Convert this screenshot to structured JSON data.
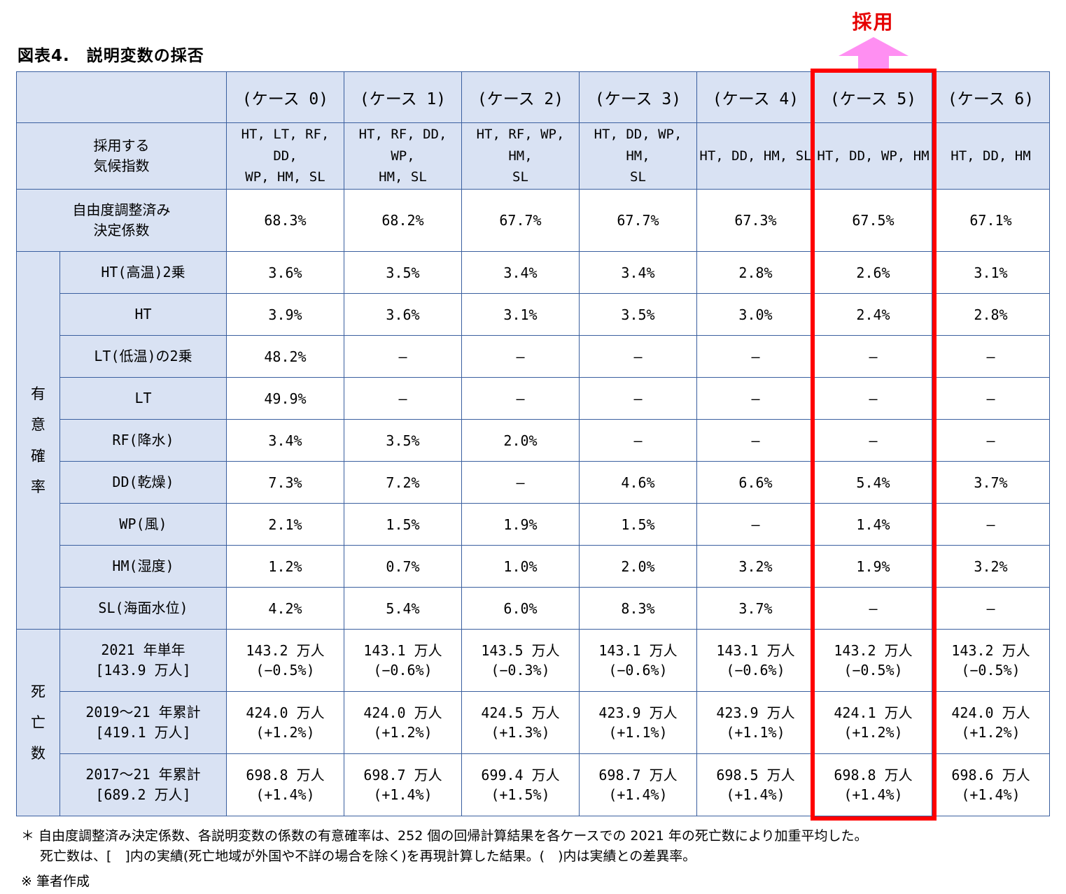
{
  "title": "図表4.　説明変数の採否",
  "adopt_label": "採用",
  "colors": {
    "header_bg": "#d9e2f3",
    "table_border": "#3a5f9f",
    "highlight_box": "#ff0000",
    "adopt_text": "#e60000",
    "arrow_pink": "#ff8ff2"
  },
  "table": {
    "case_headers": [
      "(ケース 0)",
      "(ケース 1)",
      "(ケース 2)",
      "(ケース 3)",
      "(ケース 4)",
      "(ケース 5)",
      "(ケース 6)"
    ],
    "climate_row": {
      "label": "採用する\n気候指数",
      "values": [
        "HT, LT, RF, DD,\nWP, HM, SL",
        "HT, RF, DD, WP,\nHM, SL",
        "HT, RF, WP, HM,\nSL",
        "HT, DD, WP, HM,\nSL",
        "HT, DD, HM, SL",
        "HT, DD, WP, HM",
        "HT, DD, HM"
      ]
    },
    "r2_row": {
      "label": "自由度調整済み\n決定係数",
      "values": [
        "68.3%",
        "68.2%",
        "67.7%",
        "67.7%",
        "67.3%",
        "67.5%",
        "67.1%"
      ]
    },
    "sig_group_label": "有意確率",
    "sig_rows": [
      {
        "label": "HT(高温)2乗",
        "values": [
          "3.6%",
          "3.5%",
          "3.4%",
          "3.4%",
          "2.8%",
          "2.6%",
          "3.1%"
        ]
      },
      {
        "label": "HT",
        "values": [
          "3.9%",
          "3.6%",
          "3.1%",
          "3.5%",
          "3.0%",
          "2.4%",
          "2.8%"
        ]
      },
      {
        "label": "LT(低温)の2乗",
        "values": [
          "48.2%",
          "―",
          "―",
          "―",
          "―",
          "―",
          "―"
        ]
      },
      {
        "label": "LT",
        "values": [
          "49.9%",
          "―",
          "―",
          "―",
          "―",
          "―",
          "―"
        ]
      },
      {
        "label": "RF(降水)",
        "values": [
          "3.4%",
          "3.5%",
          "2.0%",
          "―",
          "―",
          "―",
          "―"
        ]
      },
      {
        "label": "DD(乾燥)",
        "values": [
          "7.3%",
          "7.2%",
          "―",
          "4.6%",
          "6.6%",
          "5.4%",
          "3.7%"
        ]
      },
      {
        "label": "WP(風)",
        "values": [
          "2.1%",
          "1.5%",
          "1.9%",
          "1.5%",
          "―",
          "1.4%",
          "―"
        ]
      },
      {
        "label": "HM(湿度)",
        "values": [
          "1.2%",
          "0.7%",
          "1.0%",
          "2.0%",
          "3.2%",
          "1.9%",
          "3.2%"
        ]
      },
      {
        "label": "SL(海面水位)",
        "values": [
          "4.2%",
          "5.4%",
          "6.0%",
          "8.3%",
          "3.7%",
          "―",
          "―"
        ]
      }
    ],
    "death_group_label": "死亡数",
    "death_rows": [
      {
        "label": "2021 年単年\n[143.9 万人]",
        "values": [
          "143.2 万人\n(−0.5%)",
          "143.1 万人\n(−0.6%)",
          "143.5 万人\n(−0.3%)",
          "143.1 万人\n(−0.6%)",
          "143.1 万人\n(−0.6%)",
          "143.2 万人\n(−0.5%)",
          "143.2 万人\n(−0.5%)"
        ]
      },
      {
        "label": "2019〜21 年累計\n[419.1 万人]",
        "values": [
          "424.0 万人\n(+1.2%)",
          "424.0 万人\n(+1.2%)",
          "424.5 万人\n(+1.3%)",
          "423.9 万人\n(+1.1%)",
          "423.9 万人\n(+1.1%)",
          "424.1 万人\n(+1.2%)",
          "424.0 万人\n(+1.2%)"
        ]
      },
      {
        "label": "2017〜21 年累計\n[689.2 万人]",
        "values": [
          "698.8 万人\n(+1.4%)",
          "698.7 万人\n(+1.4%)",
          "699.4 万人\n(+1.5%)",
          "698.7 万人\n(+1.4%)",
          "698.5 万人\n(+1.4%)",
          "698.8 万人\n(+1.4%)",
          "698.6 万人\n(+1.4%)"
        ]
      }
    ]
  },
  "footnotes": {
    "line1": "＊ 自由度調整済み決定係数、各説明変数の係数の有意確率は、252 個の回帰計算結果を各ケースでの 2021 年の死亡数により加重平均した。",
    "line2": "死亡数は、[　]内の実績(死亡地域が外国や不詳の場合を除く)を再現計算した結果。(　)内は実績との差異率。",
    "line3": "※ 筆者作成"
  }
}
